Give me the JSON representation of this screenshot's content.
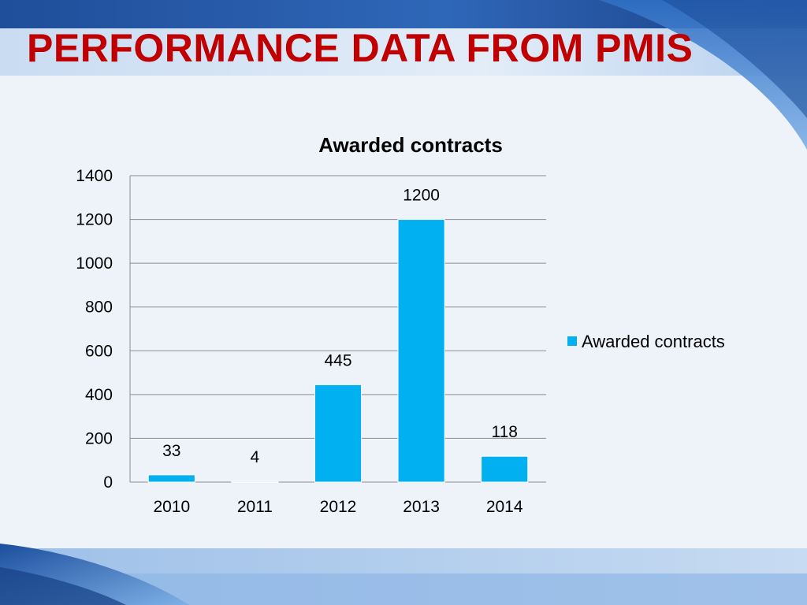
{
  "slide": {
    "title": "PERFORMANCE DATA FROM PMIS"
  },
  "colors": {
    "title": "#c00000",
    "bar": "#00b0f0",
    "gridline": "#8c8c8c",
    "background": "#eef3fa",
    "band_dark": "#1f4e9a",
    "band_light": "#7eaee0"
  },
  "chart_data": {
    "type": "bar",
    "title": "Awarded contracts",
    "categories": [
      "2010",
      "2011",
      "2012",
      "2013",
      "2014"
    ],
    "series": [
      {
        "name": "Awarded contracts",
        "values": [
          33,
          4,
          445,
          1200,
          118
        ]
      }
    ],
    "data_labels": [
      "33",
      "4",
      "445",
      "1200",
      "118"
    ],
    "ylim": [
      0,
      1400
    ],
    "yticks": [
      0,
      200,
      400,
      600,
      800,
      1000,
      1200,
      1400
    ],
    "ytick_labels": [
      "0",
      "200",
      "400",
      "600",
      "800",
      "1000",
      "1200",
      "1400"
    ],
    "grid": true,
    "legend_position": "right"
  }
}
